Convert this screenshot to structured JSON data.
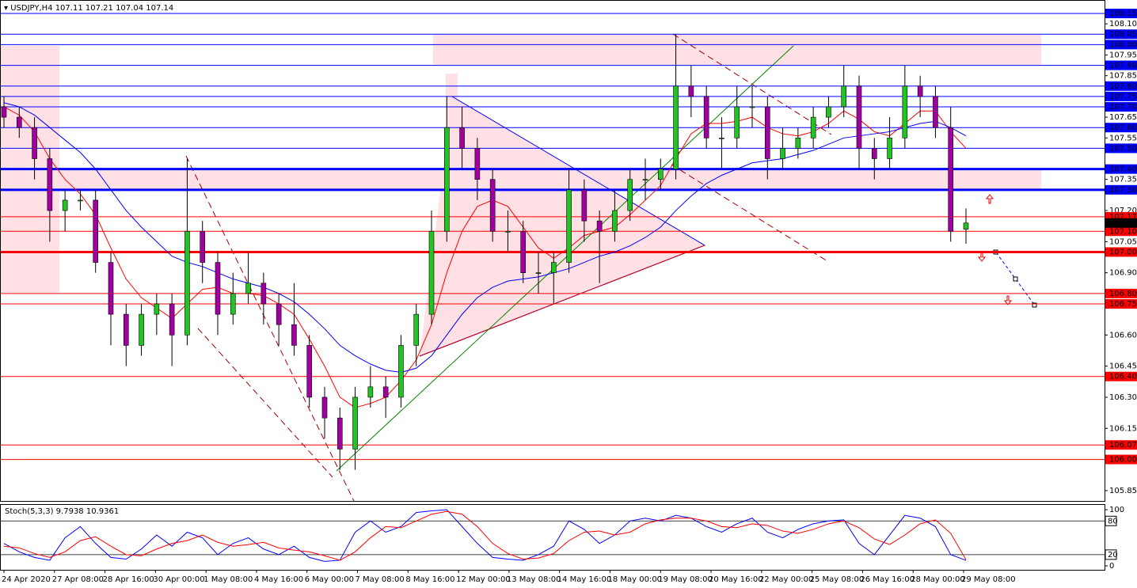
{
  "chart_data": [
    {
      "type": "candlestick",
      "title": "USDJPY,H4",
      "up_color": "#22c322",
      "down_color": "#a000a0",
      "open": [
        107.7,
        107.65,
        107.6,
        107.45,
        107.2,
        107.25,
        107.25,
        106.95,
        106.7,
        106.55,
        106.7,
        106.75,
        106.6,
        107.1,
        106.95,
        106.7,
        106.8,
        106.85,
        106.75,
        106.65,
        106.55,
        106.3,
        106.2,
        106.05,
        106.3,
        106.35,
        106.3,
        106.55,
        106.7,
        107.1,
        107.6,
        107.5,
        107.35,
        107.1,
        107.1,
        106.9,
        106.9,
        106.95,
        107.3,
        107.15,
        107.1,
        107.2,
        107.35,
        107.35,
        107.4,
        107.8,
        107.75,
        107.55,
        107.55,
        107.7,
        107.7,
        107.45,
        107.5,
        107.55,
        107.65,
        107.7,
        107.8,
        107.5,
        107.45,
        107.55,
        107.8,
        107.75,
        107.6,
        107.11
      ],
      "high": [
        107.75,
        107.7,
        107.65,
        107.5,
        107.3,
        107.3,
        107.3,
        107.0,
        106.75,
        106.75,
        106.8,
        106.8,
        107.45,
        107.15,
        107.0,
        106.9,
        107.0,
        106.9,
        106.8,
        106.85,
        106.6,
        106.35,
        106.25,
        106.35,
        106.45,
        106.4,
        106.6,
        106.75,
        107.2,
        107.75,
        107.7,
        107.55,
        107.4,
        107.2,
        107.15,
        107.0,
        107.0,
        107.4,
        107.35,
        107.2,
        107.3,
        107.4,
        107.45,
        107.45,
        108.05,
        107.9,
        107.8,
        107.65,
        107.8,
        107.8,
        107.75,
        107.6,
        107.6,
        107.7,
        107.75,
        107.9,
        107.85,
        107.55,
        107.65,
        107.9,
        107.85,
        107.8,
        107.7,
        107.21
      ],
      "low": [
        107.6,
        107.55,
        107.35,
        107.05,
        107.1,
        107.2,
        106.9,
        106.55,
        106.45,
        106.5,
        106.6,
        106.45,
        106.55,
        106.85,
        106.6,
        106.65,
        106.75,
        106.65,
        106.55,
        106.5,
        106.25,
        106.1,
        105.95,
        105.95,
        106.25,
        106.2,
        106.25,
        106.45,
        106.65,
        107.05,
        107.4,
        107.25,
        107.05,
        107.0,
        106.85,
        106.8,
        106.75,
        106.9,
        107.05,
        106.85,
        107.05,
        107.15,
        107.25,
        107.3,
        107.35,
        107.65,
        107.5,
        107.4,
        107.5,
        107.6,
        107.35,
        107.4,
        107.45,
        107.5,
        107.6,
        107.65,
        107.4,
        107.35,
        107.4,
        107.5,
        107.65,
        107.55,
        107.05,
        107.04
      ],
      "close": [
        107.65,
        107.6,
        107.45,
        107.2,
        107.25,
        107.25,
        106.95,
        106.7,
        106.55,
        106.7,
        106.75,
        106.6,
        107.1,
        106.95,
        106.7,
        106.8,
        106.85,
        106.75,
        106.65,
        106.55,
        106.3,
        106.2,
        106.05,
        106.3,
        106.35,
        106.3,
        106.55,
        106.7,
        107.1,
        107.6,
        107.5,
        107.35,
        107.1,
        107.1,
        106.9,
        106.9,
        106.95,
        107.3,
        107.15,
        107.1,
        107.2,
        107.35,
        107.35,
        107.4,
        107.8,
        107.75,
        107.55,
        107.55,
        107.7,
        107.7,
        107.45,
        107.5,
        107.55,
        107.65,
        107.7,
        107.8,
        107.5,
        107.45,
        107.55,
        107.8,
        107.75,
        107.6,
        107.1,
        107.14
      ],
      "lines": [
        {
          "color": "#ff0000",
          "values": [
            107.7,
            107.66,
            107.58,
            107.45,
            107.35,
            107.28,
            107.18,
            107.02,
            106.87,
            106.78,
            106.73,
            106.68,
            106.75,
            106.82,
            106.83,
            106.8,
            106.8,
            106.79,
            106.75,
            106.7,
            106.58,
            106.45,
            106.3,
            106.25,
            106.27,
            106.3,
            106.38,
            106.48,
            106.65,
            106.9,
            107.1,
            107.22,
            107.25,
            107.22,
            107.12,
            107.02,
            106.97,
            107.02,
            107.08,
            107.1,
            107.12,
            107.18,
            107.25,
            107.32,
            107.45,
            107.57,
            107.62,
            107.62,
            107.63,
            107.65,
            107.6,
            107.57,
            107.56,
            107.58,
            107.62,
            107.68,
            107.64,
            107.58,
            107.56,
            107.62,
            107.68,
            107.68,
            107.58,
            107.5
          ]
        },
        {
          "color": "#0000ff",
          "values": [
            107.72,
            107.7,
            107.66,
            107.6,
            107.54,
            107.48,
            107.4,
            107.3,
            107.2,
            107.12,
            107.05,
            106.98,
            106.95,
            106.93,
            106.9,
            106.87,
            106.85,
            106.83,
            106.8,
            106.76,
            106.7,
            106.63,
            106.55,
            106.5,
            106.46,
            106.43,
            106.42,
            106.44,
            106.5,
            106.6,
            106.7,
            106.78,
            106.83,
            106.86,
            106.87,
            106.88,
            106.9,
            106.92,
            106.95,
            106.98,
            107.0,
            107.03,
            107.07,
            107.12,
            107.2,
            107.27,
            107.33,
            107.37,
            107.4,
            107.43,
            107.44,
            107.45,
            107.47,
            107.49,
            107.52,
            107.55,
            107.56,
            107.57,
            107.58,
            107.6,
            107.62,
            107.63,
            107.6,
            107.56
          ]
        }
      ],
      "ylim": [
        105.8,
        108.215
      ],
      "yticks": [
        {
          "value": 108.1,
          "label": "108.10"
        },
        107.95,
        107.85,
        107.65,
        107.55,
        107.35,
        {
          "value": 107.2,
          "label": "107.20"
        },
        107.05,
        {
          "value": 106.9,
          "label": "106.90"
        },
        {
          "value": 106.6,
          "label": "106.60"
        },
        106.45,
        {
          "value": 106.3,
          "label": "106.30"
        },
        106.15,
        105.85
      ],
      "levels": [
        {
          "value": 108.15,
          "color": "#0000ff",
          "width": 1
        },
        {
          "value": 108.05,
          "color": "#0000ff",
          "width": 1
        },
        {
          "value": 108.0,
          "label": "108.00",
          "color": "#0000ff",
          "width": 1
        },
        {
          "value": 107.9,
          "label": "107.90",
          "color": "#0000ff",
          "width": 1
        },
        {
          "value": 107.8,
          "label": "107.80",
          "color": "#0000ff",
          "width": 1
        },
        {
          "value": 107.75,
          "color": "#0000ff",
          "width": 1
        },
        {
          "value": 107.7,
          "label": "107.70",
          "color": "#0000ff",
          "width": 1
        },
        {
          "value": 107.6,
          "label": "107.60",
          "color": "#0000ff",
          "width": 1
        },
        {
          "value": 107.5,
          "label": "107.50",
          "color": "#0000ff",
          "width": 1
        },
        {
          "value": 107.4,
          "label": "107.40",
          "color": "#0000ff",
          "width": 3
        },
        {
          "value": 107.3,
          "label": "107.30",
          "color": "#0000ff",
          "width": 3
        },
        {
          "value": 107.17,
          "color": "#ff0000",
          "width": 1
        },
        {
          "value": 107.1,
          "label": "107.10",
          "color": "#ff0000",
          "width": 1
        },
        {
          "value": 107.0,
          "label": "107.00",
          "color": "#ff0000",
          "width": 3
        },
        {
          "value": 106.8,
          "label": "106.80",
          "color": "#ff0000",
          "width": 1
        },
        {
          "value": 106.75,
          "color": "#ff0000",
          "width": 1
        },
        {
          "value": 106.4,
          "label": "106.40",
          "color": "#ff0000",
          "width": 1
        },
        {
          "value": 106.07,
          "color": "#ff0000",
          "width": 1
        },
        {
          "value": 106.0,
          "label": "106.00",
          "color": "#ff0000",
          "width": 1
        }
      ],
      "x_labels": [
        "24 Apr 2020",
        "27 Apr 08:00",
        "28 Apr 16:00",
        "30 Apr 00:00",
        "1 May 08:00",
        "4 May 16:00",
        "6 May 00:00",
        "7 May 08:00",
        "8 May 16:00",
        "12 May 00:00",
        "13 May 08:00",
        "14 May 16:00",
        "18 May 00:00",
        "19 May 08:00",
        "20 May 16:00",
        "22 May 00:00",
        "25 May 08:00",
        "26 May 16:00",
        "28 May 00:00",
        "29 May 08:00"
      ]
    },
    {
      "type": "line",
      "title": "Stoch(5,3,3)",
      "series": [
        {
          "color": "#0000ff",
          "values": [
            40,
            25,
            15,
            10,
            50,
            70,
            40,
            15,
            12,
            30,
            55,
            35,
            60,
            50,
            20,
            40,
            50,
            30,
            20,
            35,
            15,
            8,
            10,
            60,
            80,
            60,
            70,
            95,
            98,
            100,
            70,
            40,
            15,
            12,
            10,
            20,
            35,
            80,
            65,
            40,
            55,
            80,
            85,
            80,
            90,
            85,
            70,
            60,
            75,
            85,
            60,
            50,
            65,
            75,
            80,
            82,
            40,
            20,
            55,
            90,
            85,
            70,
            20,
            9.7938
          ]
        },
        {
          "color": "#ff0000",
          "values": [
            35,
            32,
            22,
            15,
            25,
            45,
            52,
            35,
            20,
            18,
            30,
            40,
            45,
            55,
            42,
            35,
            38,
            42,
            32,
            28,
            25,
            18,
            10,
            25,
            50,
            70,
            68,
            80,
            92,
            97,
            92,
            70,
            40,
            22,
            12,
            14,
            22,
            45,
            60,
            62,
            55,
            60,
            75,
            82,
            85,
            85,
            80,
            70,
            68,
            75,
            72,
            62,
            58,
            65,
            75,
            80,
            68,
            48,
            38,
            55,
            75,
            82,
            58,
            10.9361
          ]
        }
      ],
      "ylim": [
        -7,
        110
      ],
      "yticks": [
        100,
        0
      ],
      "levels": [
        80,
        20
      ]
    }
  ]
}
